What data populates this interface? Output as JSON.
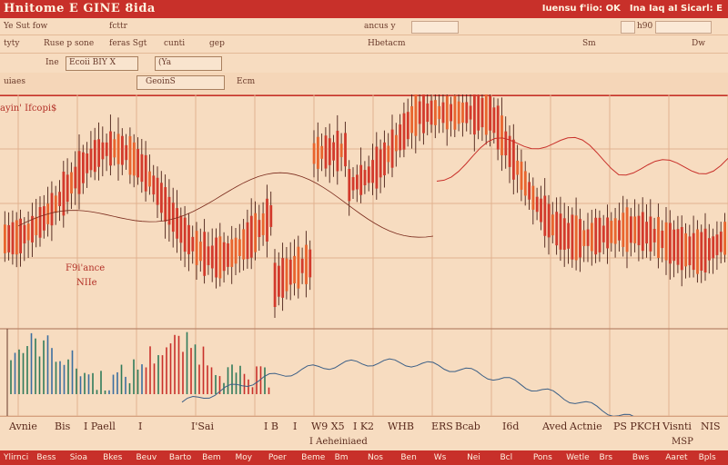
{
  "window": {
    "title": "Hnitome E GINE 8ida",
    "right_items": [
      "Iuensu f'iio: OK",
      "Ina Iaq aI Sicarl: E"
    ]
  },
  "toolbar1": {
    "items": [
      "Ye Sut fow",
      "fcttr",
      "ancus y",
      "h90"
    ]
  },
  "toolbar2": {
    "items": [
      "tyty",
      "Ruse p sone",
      "feras Sgt",
      "cunti",
      "gep",
      "Hbetacm",
      "Sm",
      "Dw"
    ]
  },
  "toolbar3": {
    "items": [
      "Ine",
      "Ecoii BIY X",
      "(Ya"
    ]
  },
  "toolbar4": {
    "items": [
      "uiaes",
      "GeoinS",
      "Ecm"
    ]
  },
  "annotations": {
    "top_left": "ayin' Ifcopi$",
    "mid_left_1": "F9i'ance",
    "mid_left_2": "NIIe"
  },
  "x_axis": {
    "labels": [
      "Avnie",
      "Bis",
      "I Paell",
      "I",
      "I'Sai",
      "I B",
      "I",
      "W9 X5",
      "I K2",
      "WHB",
      "ERS",
      "Bcab",
      "I6d",
      "Aved",
      "Actnie",
      "PS PKCH",
      "Visnti",
      "NIS"
    ],
    "subtitle": "I Aeheiniaed",
    "right_sub": "MSP"
  },
  "status": {
    "items": [
      "Ylirnci",
      "Bess",
      "Sioa",
      "Bkes",
      "Beuv",
      "Barto",
      "Bem",
      "Moy",
      "Poer",
      "Beme",
      "Bm",
      "Nos",
      "Ben",
      "Ws",
      "Nei",
      "Bcl",
      "Pons",
      "Wetle",
      "Brs",
      "Bws",
      "Aaret",
      "Bpls"
    ]
  },
  "chart_data": {
    "type": "candlestick",
    "candles": [],
    "overlay_line": [],
    "volume_bars": []
  },
  "colors": {
    "accent": "#c8302a",
    "bg": "#f7dcc0",
    "candle": "#d23a2c",
    "wick": "#4a1f16"
  }
}
